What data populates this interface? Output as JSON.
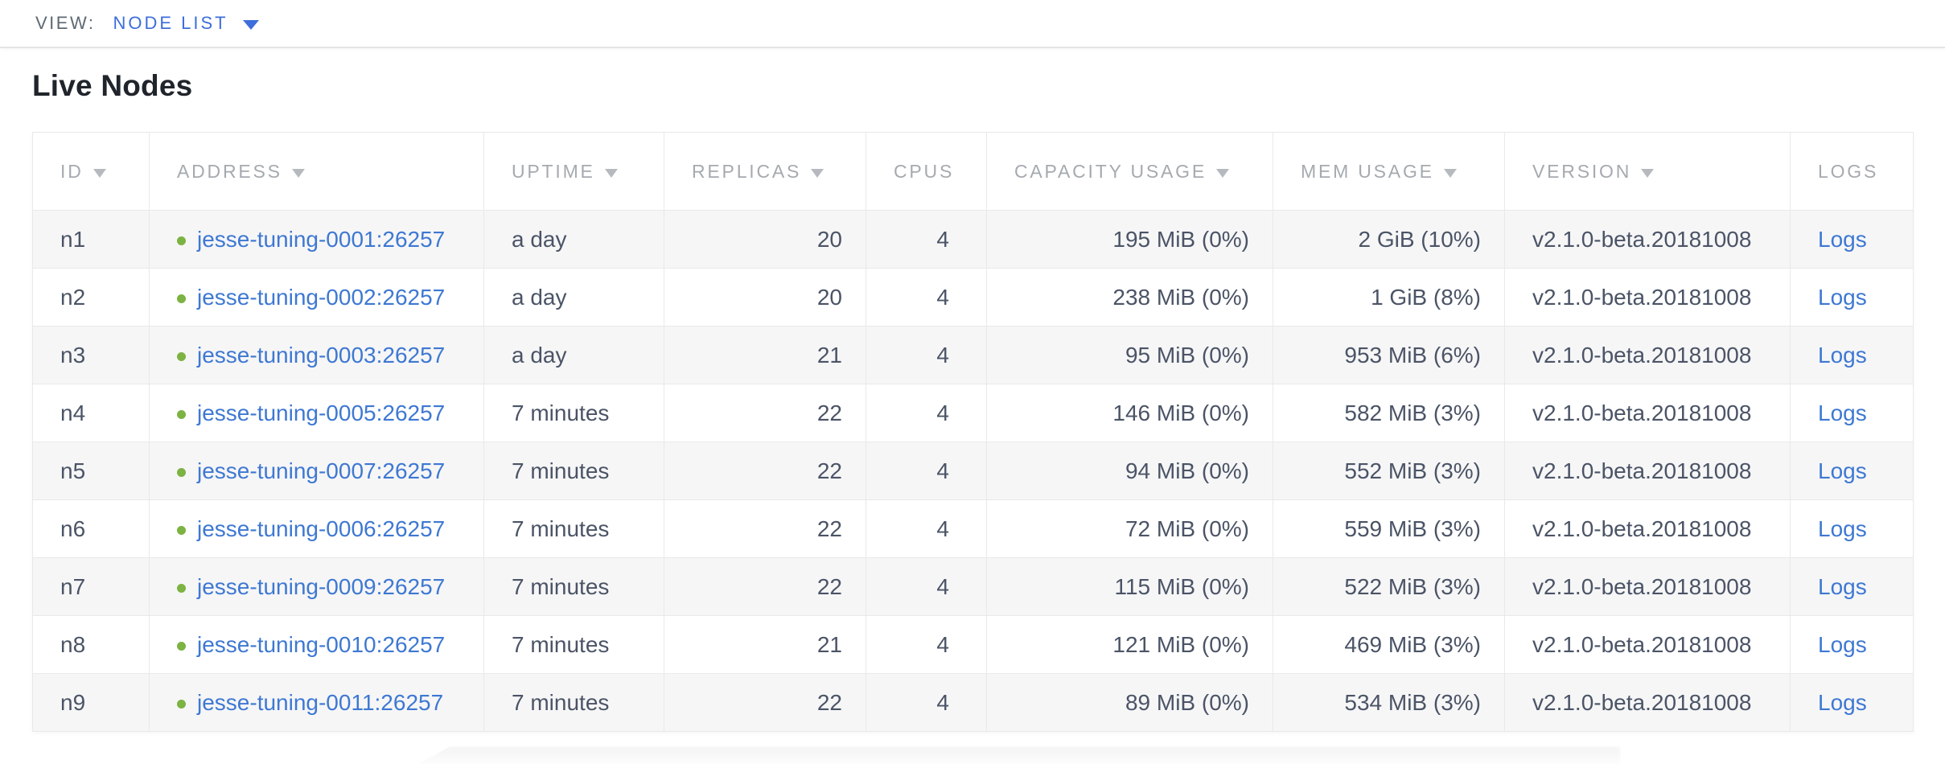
{
  "view_bar": {
    "label": "VIEW:",
    "selected": "NODE LIST"
  },
  "page": {
    "title": "Live Nodes"
  },
  "colors": {
    "accent_blue": "#3d6edb",
    "link_blue": "#3e78d2",
    "live_green": "#7cb342",
    "header_gray": "#a5aaaf",
    "cell_text": "#4b5466",
    "row_stripe": "#f6f6f7",
    "border": "#e9e9ea"
  },
  "table": {
    "columns": [
      {
        "key": "id",
        "label": "ID",
        "sortable": true,
        "align": "left"
      },
      {
        "key": "address",
        "label": "ADDRESS",
        "sortable": true,
        "align": "left"
      },
      {
        "key": "uptime",
        "label": "UPTIME",
        "sortable": true,
        "align": "left"
      },
      {
        "key": "replicas",
        "label": "REPLICAS",
        "sortable": true,
        "align": "right"
      },
      {
        "key": "cpus",
        "label": "CPUS",
        "sortable": false,
        "align": "right"
      },
      {
        "key": "capacity",
        "label": "CAPACITY USAGE",
        "sortable": true,
        "align": "right"
      },
      {
        "key": "mem",
        "label": "MEM USAGE",
        "sortable": true,
        "align": "right"
      },
      {
        "key": "version",
        "label": "VERSION",
        "sortable": true,
        "align": "left"
      },
      {
        "key": "logs",
        "label": "LOGS",
        "sortable": false,
        "align": "left"
      }
    ],
    "status_icon": "live-dot-icon",
    "rows": [
      {
        "id": "n1",
        "address": "jesse-tuning-0001:26257",
        "uptime": "a day",
        "replicas": "20",
        "cpus": "4",
        "capacity": "195 MiB (0%)",
        "mem": "2 GiB (10%)",
        "version": "v2.1.0-beta.20181008",
        "logs": "Logs"
      },
      {
        "id": "n2",
        "address": "jesse-tuning-0002:26257",
        "uptime": "a day",
        "replicas": "20",
        "cpus": "4",
        "capacity": "238 MiB (0%)",
        "mem": "1 GiB (8%)",
        "version": "v2.1.0-beta.20181008",
        "logs": "Logs"
      },
      {
        "id": "n3",
        "address": "jesse-tuning-0003:26257",
        "uptime": "a day",
        "replicas": "21",
        "cpus": "4",
        "capacity": "95 MiB (0%)",
        "mem": "953 MiB (6%)",
        "version": "v2.1.0-beta.20181008",
        "logs": "Logs"
      },
      {
        "id": "n4",
        "address": "jesse-tuning-0005:26257",
        "uptime": "7 minutes",
        "replicas": "22",
        "cpus": "4",
        "capacity": "146 MiB (0%)",
        "mem": "582 MiB (3%)",
        "version": "v2.1.0-beta.20181008",
        "logs": "Logs"
      },
      {
        "id": "n5",
        "address": "jesse-tuning-0007:26257",
        "uptime": "7 minutes",
        "replicas": "22",
        "cpus": "4",
        "capacity": "94 MiB (0%)",
        "mem": "552 MiB (3%)",
        "version": "v2.1.0-beta.20181008",
        "logs": "Logs"
      },
      {
        "id": "n6",
        "address": "jesse-tuning-0006:26257",
        "uptime": "7 minutes",
        "replicas": "22",
        "cpus": "4",
        "capacity": "72 MiB (0%)",
        "mem": "559 MiB (3%)",
        "version": "v2.1.0-beta.20181008",
        "logs": "Logs"
      },
      {
        "id": "n7",
        "address": "jesse-tuning-0009:26257",
        "uptime": "7 minutes",
        "replicas": "22",
        "cpus": "4",
        "capacity": "115 MiB (0%)",
        "mem": "522 MiB (3%)",
        "version": "v2.1.0-beta.20181008",
        "logs": "Logs"
      },
      {
        "id": "n8",
        "address": "jesse-tuning-0010:26257",
        "uptime": "7 minutes",
        "replicas": "21",
        "cpus": "4",
        "capacity": "121 MiB (0%)",
        "mem": "469 MiB (3%)",
        "version": "v2.1.0-beta.20181008",
        "logs": "Logs"
      },
      {
        "id": "n9",
        "address": "jesse-tuning-0011:26257",
        "uptime": "7 minutes",
        "replicas": "22",
        "cpus": "4",
        "capacity": "89 MiB (0%)",
        "mem": "534 MiB (3%)",
        "version": "v2.1.0-beta.20181008",
        "logs": "Logs"
      }
    ]
  }
}
